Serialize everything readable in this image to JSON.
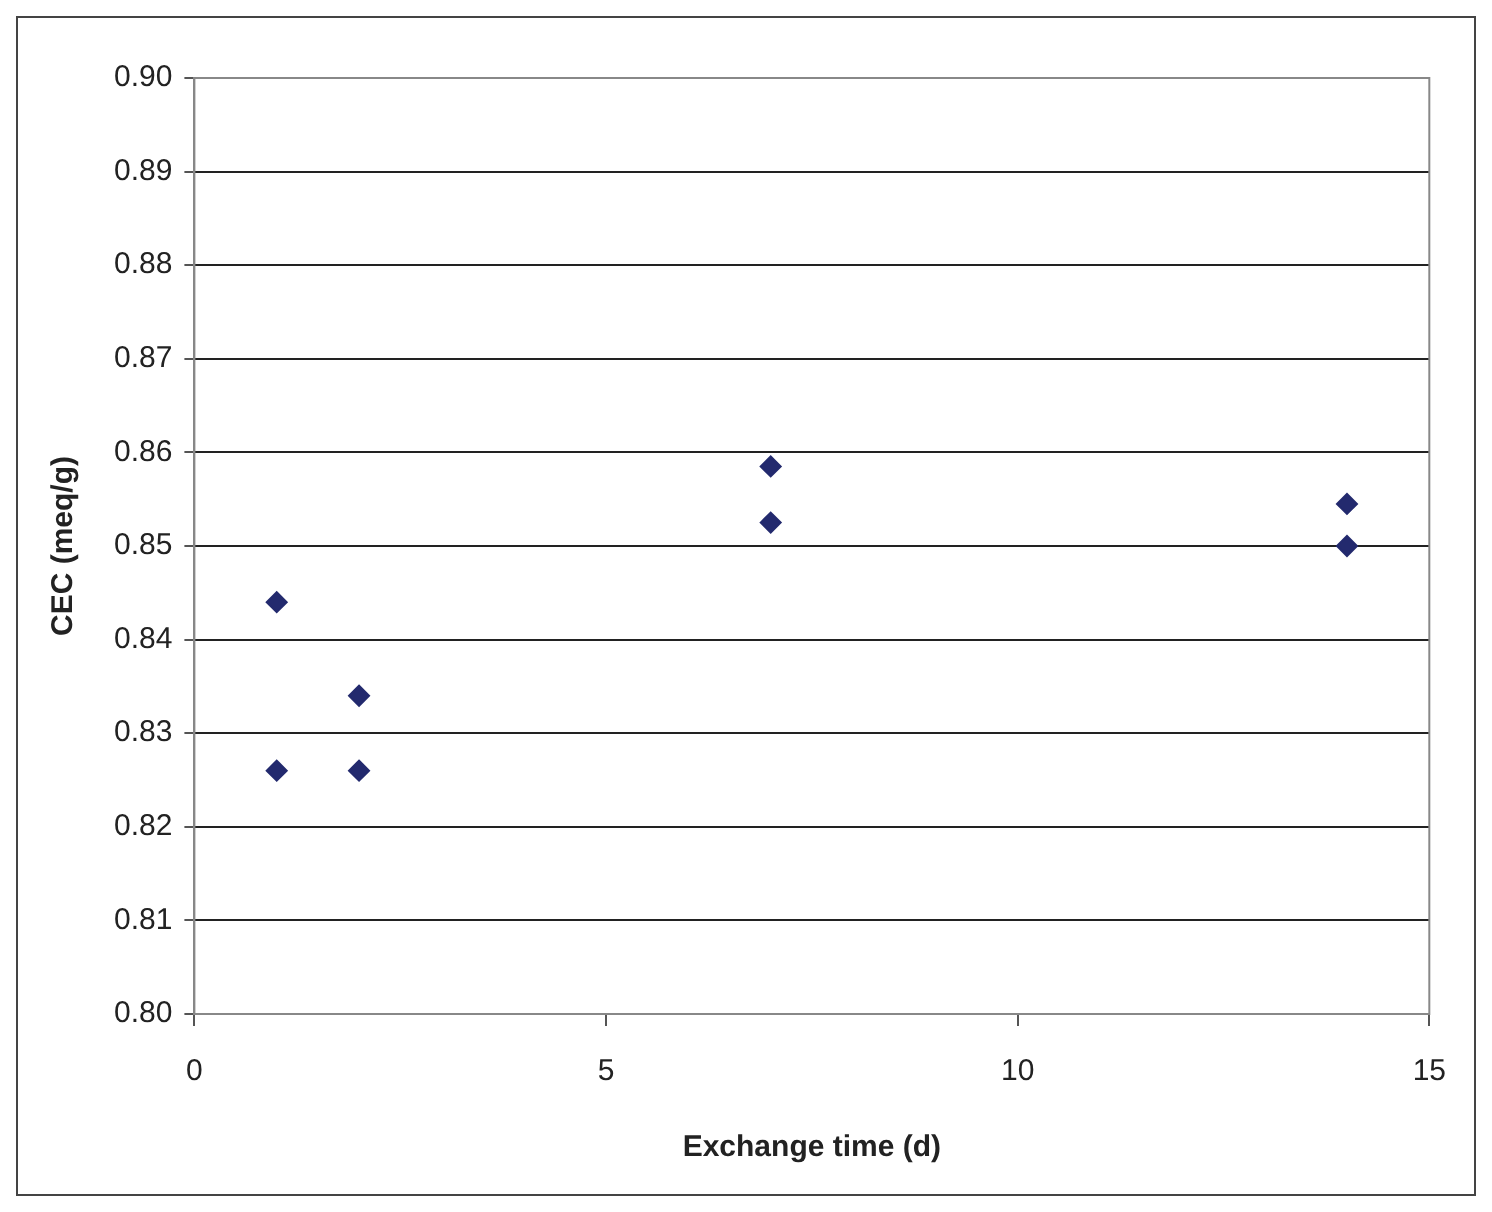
{
  "chart_data": {
    "type": "scatter",
    "xlabel": "Exchange time (d)",
    "ylabel": "CEC (meq/g)",
    "x": [
      1,
      1,
      2,
      2,
      7,
      7,
      14,
      14
    ],
    "values": [
      0.844,
      0.826,
      0.834,
      0.826,
      0.8585,
      0.8525,
      0.8545,
      0.85
    ],
    "color": "#232a6e",
    "marker": "diamond",
    "grid": "y",
    "legend": false,
    "xlim": [
      0,
      15
    ],
    "xticks": [
      0,
      5,
      10,
      15
    ],
    "ylim": [
      0.8,
      0.9
    ],
    "yticks": [
      {
        "value": 0.8,
        "label": "0.80"
      },
      {
        "value": 0.81,
        "label": "0.81"
      },
      {
        "value": 0.82,
        "label": "0.82"
      },
      {
        "value": 0.83,
        "label": "0.83"
      },
      {
        "value": 0.84,
        "label": "0.84"
      },
      {
        "value": 0.85,
        "label": "0.85"
      },
      {
        "value": 0.86,
        "label": "0.86"
      },
      {
        "value": 0.87,
        "label": "0.87"
      },
      {
        "value": 0.88,
        "label": "0.88"
      },
      {
        "value": 0.89,
        "label": "0.89"
      },
      {
        "value": 0.9,
        "label": "0.90"
      }
    ]
  }
}
